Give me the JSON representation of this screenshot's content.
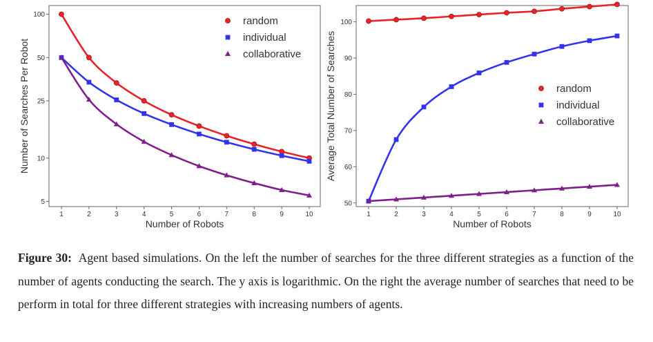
{
  "colors": {
    "random": "#e8232a",
    "individual": "#3333ee",
    "collaborative": "#7f1f8c",
    "axes": "#666666",
    "text": "#333333"
  },
  "chart_data": [
    {
      "type": "line",
      "xlabel": "Number of Robots",
      "ylabel": "Number of Searches Per Robot",
      "x": [
        1,
        2,
        3,
        4,
        5,
        6,
        7,
        8,
        9,
        10
      ],
      "xticks": [
        "1",
        "2",
        "3",
        "4",
        "5",
        "6",
        "7",
        "8",
        "9",
        "10"
      ],
      "yscale": "log",
      "ylim": [
        4.6,
        115
      ],
      "yticks": [
        5,
        10,
        25,
        50,
        100
      ],
      "ytick_labels": [
        "5",
        "10",
        "25",
        "50",
        "100"
      ],
      "grid": false,
      "legend_position": "top-right",
      "series": [
        {
          "name": "random",
          "marker": "circle",
          "values": [
            100,
            50,
            33.3,
            25,
            20,
            16.7,
            14.3,
            12.5,
            11.1,
            10
          ]
        },
        {
          "name": "individual",
          "marker": "square",
          "values": [
            50,
            33.7,
            25.4,
            20.4,
            17.1,
            14.7,
            12.9,
            11.5,
            10.4,
            9.5
          ]
        },
        {
          "name": "collaborative",
          "marker": "triangle",
          "values": [
            50,
            25.5,
            17.2,
            13,
            10.5,
            8.8,
            7.6,
            6.7,
            6,
            5.5
          ]
        }
      ]
    },
    {
      "type": "line",
      "xlabel": "Number of Robots",
      "ylabel": "Average Total Number of Searches",
      "x": [
        1,
        2,
        3,
        4,
        5,
        6,
        7,
        8,
        9,
        10
      ],
      "xticks": [
        "1",
        "2",
        "3",
        "4",
        "5",
        "6",
        "7",
        "8",
        "9",
        "10"
      ],
      "yscale": "linear",
      "ylim": [
        49,
        104.5
      ],
      "yticks": [
        50,
        60,
        70,
        80,
        90,
        100
      ],
      "ytick_labels": [
        "50",
        "60",
        "70",
        "80",
        "90",
        "100"
      ],
      "grid": false,
      "legend_position": "center-right",
      "series": [
        {
          "name": "random",
          "marker": "circle",
          "values": [
            100.2,
            100.6,
            101,
            101.5,
            102,
            102.5,
            102.9,
            103.6,
            104.2,
            104.8
          ]
        },
        {
          "name": "individual",
          "marker": "square",
          "values": [
            50.5,
            67.5,
            76.5,
            82.1,
            85.9,
            88.8,
            91.1,
            93.2,
            94.8,
            96.1
          ]
        },
        {
          "name": "collaborative",
          "marker": "triangle",
          "values": [
            50.5,
            51,
            51.5,
            52,
            52.5,
            53,
            53.5,
            54,
            54.5,
            55
          ]
        }
      ]
    }
  ],
  "caption": {
    "label": "Figure 30:",
    "text": "Agent based simulations. On the left the number of searches for the three different strategies as a function of the number of agents conducting the search. The y axis is logarithmic. On the right the average number of searches that need to be perform in total for three different strategies with increasing numbers of agents."
  }
}
